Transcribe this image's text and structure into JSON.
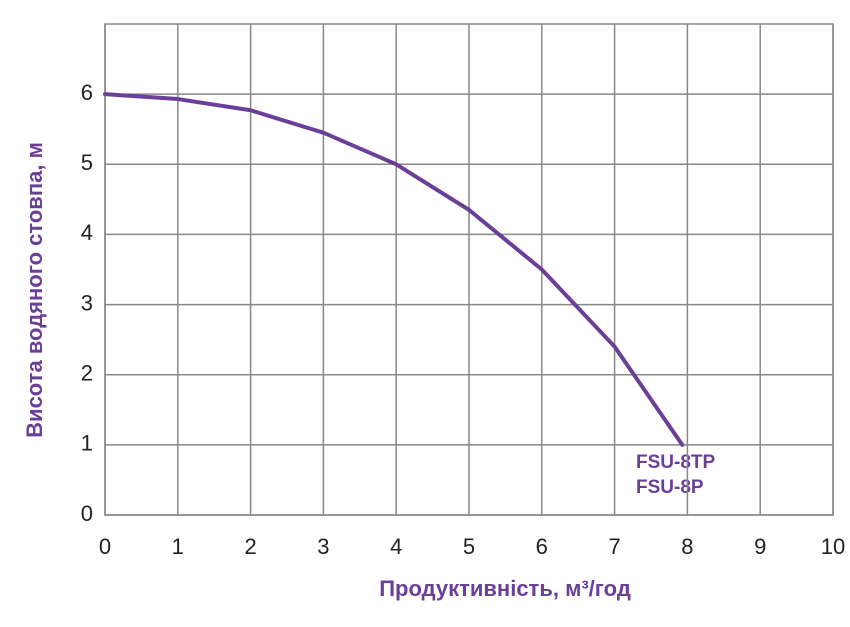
{
  "chart_data": {
    "type": "line",
    "xlabel": "Продуктивність, м³/год",
    "ylabel": "Висота водяного стовпа, м",
    "x": [
      0,
      1,
      2,
      3,
      4,
      5,
      6,
      7,
      7.93
    ],
    "series": [
      {
        "color": "#6b3f98",
        "values": [
          6,
          5.93,
          5.77,
          5.45,
          5.0,
          4.35,
          3.5,
          2.4,
          1.0
        ]
      }
    ],
    "annotations": [
      "FSU-8TP",
      "FSU-8P"
    ],
    "xlim": [
      0,
      10
    ],
    "xticks": [
      0,
      1,
      2,
      3,
      4,
      5,
      6,
      7,
      8,
      9,
      10
    ],
    "ylim": [
      0,
      7
    ],
    "yticks": [
      0,
      1,
      2,
      3,
      4,
      5,
      6
    ],
    "grid": true
  }
}
